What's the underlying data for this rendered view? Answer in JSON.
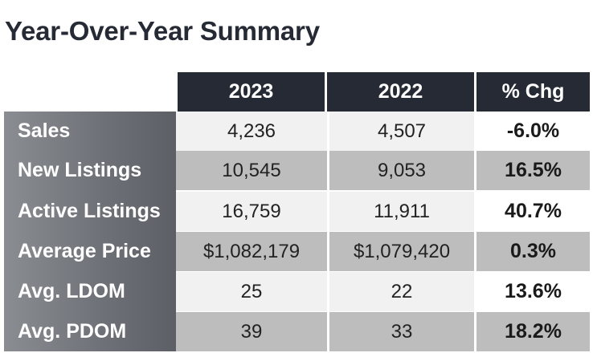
{
  "title": "Year-Over-Year Summary",
  "columns": [
    "2023",
    "2022",
    "% Chg"
  ],
  "rows": [
    {
      "label": "Sales",
      "y2023": "4,236",
      "y2022": "4,507",
      "chg": "-6.0%"
    },
    {
      "label": "New Listings",
      "y2023": "10,545",
      "y2022": "9,053",
      "chg": "16.5%"
    },
    {
      "label": "Active Listings",
      "y2023": "16,759",
      "y2022": "11,911",
      "chg": "40.7%"
    },
    {
      "label": "Average Price",
      "y2023": "$1,082,179",
      "y2022": "$1,079,420",
      "chg": "0.3%"
    },
    {
      "label": "Avg. LDOM",
      "y2023": "25",
      "y2022": "22",
      "chg": "13.6%"
    },
    {
      "label": "Avg. PDOM",
      "y2023": "39",
      "y2022": "33",
      "chg": "18.2%"
    }
  ],
  "colors": {
    "header_bg": "#262a35",
    "label_bg": "#6f7278",
    "row_light": "#f1f1f2",
    "row_dark": "#bdbdbe"
  }
}
